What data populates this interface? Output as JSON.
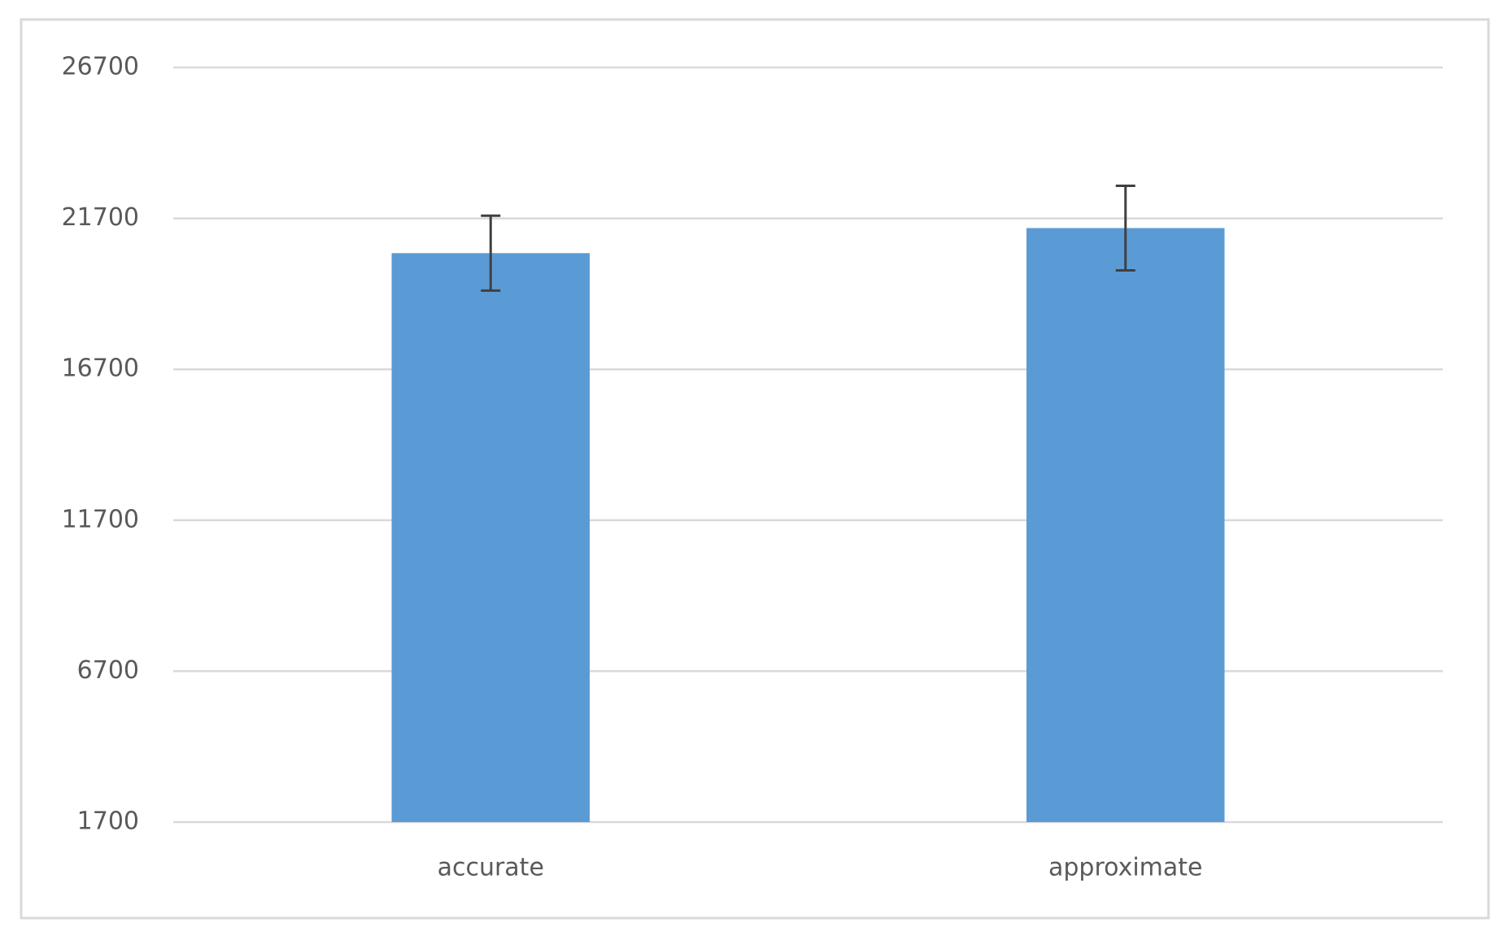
{
  "chart_data": {
    "type": "bar",
    "categories": [
      "accurate",
      "approximate"
    ],
    "values": [
      20550,
      21380
    ],
    "errors": [
      1240,
      1400
    ],
    "color": "#5b9bd5",
    "error_color": "#404040",
    "ylim": [
      1700,
      26700
    ],
    "yticks": [
      1700,
      6700,
      11700,
      16700,
      21700,
      26700
    ],
    "grid": true
  }
}
